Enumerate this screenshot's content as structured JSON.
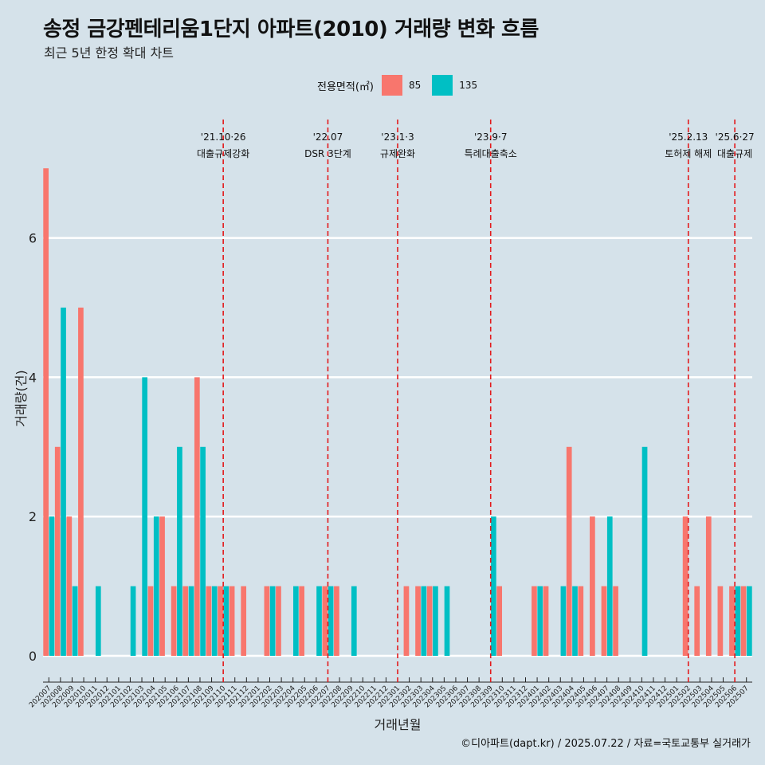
{
  "title": "송정 금강펜테리움1단지 아파트(2010) 거래량 변화 흐름",
  "subtitle": "최근 5년 한정 확대 차트",
  "caption": "©디아파트(dapt.kr) / 2025.07.22 / 자료=국토교통부 실거래가",
  "legend": {
    "title": "전용면적(㎡)",
    "items": [
      {
        "label": "85",
        "color": "#f8766d"
      },
      {
        "label": "135",
        "color": "#00bfc4"
      }
    ]
  },
  "chart_data": {
    "type": "bar",
    "xlabel": "거래년월",
    "ylabel": "거래량(건)",
    "ylim": [
      0,
      7
    ],
    "yticks": [
      0,
      2,
      4,
      6
    ],
    "categories": [
      "202007",
      "202008",
      "202009",
      "202010",
      "202011",
      "202012",
      "202101",
      "202102",
      "202103",
      "202104",
      "202105",
      "202106",
      "202107",
      "202108",
      "202109",
      "202110",
      "202111",
      "202112",
      "202201",
      "202202",
      "202203",
      "202204",
      "202205",
      "202206",
      "202207",
      "202208",
      "202209",
      "202210",
      "202211",
      "202212",
      "202301",
      "202302",
      "202303",
      "202304",
      "202305",
      "202306",
      "202307",
      "202308",
      "202309",
      "202310",
      "202311",
      "202312",
      "202401",
      "202402",
      "202403",
      "202404",
      "202405",
      "202406",
      "202407",
      "202408",
      "202409",
      "202410",
      "202411",
      "202412",
      "202501",
      "202502",
      "202503",
      "202504",
      "202505",
      "202506",
      "202507"
    ],
    "series": [
      {
        "name": "85",
        "color": "#f8766d",
        "values": [
          7,
          3,
          2,
          5,
          0,
          0,
          0,
          0,
          0,
          1,
          2,
          1,
          1,
          4,
          1,
          1,
          1,
          1,
          0,
          1,
          1,
          0,
          1,
          0,
          1,
          1,
          0,
          0,
          0,
          0,
          0,
          1,
          1,
          1,
          0,
          0,
          0,
          0,
          0,
          1,
          0,
          0,
          1,
          1,
          0,
          3,
          1,
          2,
          1,
          1,
          0,
          0,
          0,
          0,
          0,
          2,
          1,
          2,
          1,
          1,
          1
        ]
      },
      {
        "name": "135",
        "color": "#00bfc4",
        "values": [
          2,
          5,
          1,
          0,
          1,
          0,
          0,
          1,
          4,
          2,
          0,
          3,
          1,
          3,
          1,
          1,
          0,
          0,
          0,
          1,
          0,
          1,
          0,
          1,
          1,
          0,
          1,
          0,
          0,
          0,
          0,
          0,
          1,
          1,
          1,
          0,
          0,
          0,
          2,
          0,
          0,
          0,
          1,
          0,
          1,
          1,
          0,
          0,
          2,
          0,
          0,
          3,
          0,
          0,
          0,
          0,
          0,
          0,
          0,
          1,
          1
        ]
      }
    ],
    "events": [
      {
        "date": "'21.10·26",
        "label": "대출규제강화",
        "index": 15
      },
      {
        "date": "'22.07",
        "label": "DSR 3단계",
        "index": 24
      },
      {
        "date": "'23.1·3",
        "label": "규제완화",
        "index": 30
      },
      {
        "date": "'23.9·7",
        "label": "특례대출축소",
        "index": 38
      },
      {
        "date": "'25.2.13",
        "label": "토허제 해제",
        "index": 55
      },
      {
        "date": "'25.6·27",
        "label": "대출규제",
        "index": 59
      }
    ]
  }
}
